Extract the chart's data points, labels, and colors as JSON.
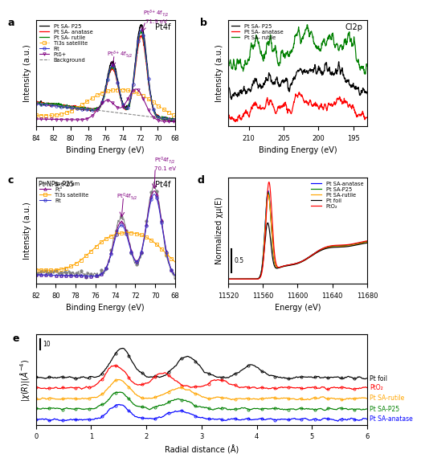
{
  "panel_a": {
    "title": "Pt4f",
    "label": "a",
    "xlabel": "Binding Energy (eV)",
    "ylabel": "Intensity (a.u.)",
    "xlim": [
      84,
      68
    ],
    "xticks": [
      84,
      82,
      80,
      78,
      76,
      74,
      72,
      70,
      68
    ]
  },
  "panel_b": {
    "title": "Cl2p",
    "label": "b",
    "xlabel": "Binding Energy (eV)",
    "ylabel": "Intensity (a.u.)",
    "xlim": [
      213,
      193
    ],
    "xticks": [
      210,
      205,
      200,
      195
    ]
  },
  "panel_c": {
    "title": "Pt4f",
    "label": "c",
    "xlabel": "Binding Energy (eV)",
    "ylabel": "Intensity (a.u.)",
    "xlim": [
      82,
      68
    ],
    "xticks": [
      82,
      80,
      78,
      76,
      74,
      72,
      70,
      68
    ]
  },
  "panel_d": {
    "label": "d",
    "xlabel": "Energy (eV)",
    "ylabel": "Normalized χμ(E)",
    "xlim": [
      11520,
      11680
    ],
    "xticks": [
      11520,
      11560,
      11600,
      11640,
      11680
    ],
    "scalebar_val": "0.5"
  },
  "panel_e": {
    "label": "e",
    "xlabel": "Radial distance (Å)",
    "ylabel": "|chi(R)|(Å⁻⁴)",
    "xlim": [
      0,
      6
    ],
    "xticks": [
      0,
      1,
      2,
      3,
      4,
      5,
      6
    ],
    "labels": [
      "Pt foil",
      "PtO₂",
      "Pt SA-rutile",
      "Pt SA-P25",
      "Pt SA-anatase"
    ],
    "colors": [
      "black",
      "red",
      "orange",
      "green",
      "blue"
    ],
    "scalebar_val": "10"
  }
}
